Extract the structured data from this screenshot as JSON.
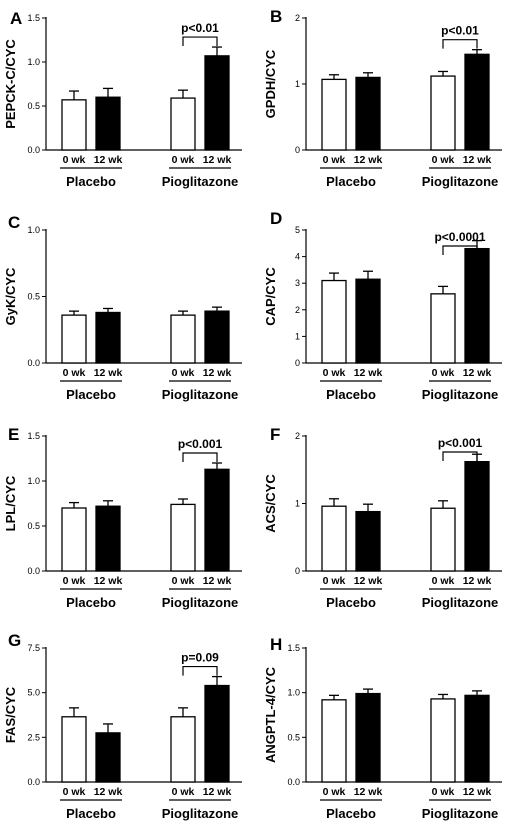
{
  "chart_data": [
    {
      "type": "bar",
      "panel": "A",
      "ylabel": "PEPCK-C/CYC",
      "ylim": [
        0,
        1.5
      ],
      "yticks": [
        "0.0",
        "0.5",
        "1.0",
        "1.5"
      ],
      "ytick_values": [
        0,
        0.5,
        1.0,
        1.5
      ],
      "groups": [
        "Placebo",
        "Pioglitazone"
      ],
      "timepoints": [
        "0 wk",
        "12 wk"
      ],
      "series": [
        {
          "name": "0 wk",
          "fill": "white",
          "values": [
            0.57,
            0.59
          ],
          "errors": [
            0.1,
            0.09
          ]
        },
        {
          "name": "12 wk",
          "fill": "black",
          "values": [
            0.6,
            1.07
          ],
          "errors": [
            0.1,
            0.1
          ]
        }
      ],
      "significance": {
        "group": 1,
        "label": "p<0.01"
      }
    },
    {
      "type": "bar",
      "panel": "B",
      "ylabel": "GPDH/CYC",
      "ylim": [
        0,
        2
      ],
      "yticks": [
        "0",
        "1",
        "2"
      ],
      "ytick_values": [
        0,
        1,
        2
      ],
      "groups": [
        "Placebo",
        "Pioglitazone"
      ],
      "timepoints": [
        "0 wk",
        "12 wk"
      ],
      "series": [
        {
          "name": "0 wk",
          "fill": "white",
          "values": [
            1.07,
            1.12
          ],
          "errors": [
            0.07,
            0.07
          ]
        },
        {
          "name": "12 wk",
          "fill": "black",
          "values": [
            1.1,
            1.45
          ],
          "errors": [
            0.07,
            0.07
          ]
        }
      ],
      "significance": {
        "group": 1,
        "label": "p<0.01"
      }
    },
    {
      "type": "bar",
      "panel": "C",
      "ylabel": "GyK/CYC",
      "ylim": [
        0,
        1.0
      ],
      "yticks": [
        "0.0",
        "0.5",
        "1.0"
      ],
      "ytick_values": [
        0,
        0.5,
        1.0
      ],
      "groups": [
        "Placebo",
        "Pioglitazone"
      ],
      "timepoints": [
        "0 wk",
        "12 wk"
      ],
      "series": [
        {
          "name": "0 wk",
          "fill": "white",
          "values": [
            0.36,
            0.36
          ],
          "errors": [
            0.03,
            0.03
          ]
        },
        {
          "name": "12 wk",
          "fill": "black",
          "values": [
            0.38,
            0.39
          ],
          "errors": [
            0.03,
            0.03
          ]
        }
      ],
      "significance": null
    },
    {
      "type": "bar",
      "panel": "D",
      "ylabel": "CAP/CYC",
      "ylim": [
        0,
        5
      ],
      "yticks": [
        "0",
        "1",
        "2",
        "3",
        "4",
        "5"
      ],
      "ytick_values": [
        0,
        1,
        2,
        3,
        4,
        5
      ],
      "groups": [
        "Placebo",
        "Pioglitazone"
      ],
      "timepoints": [
        "0 wk",
        "12 wk"
      ],
      "series": [
        {
          "name": "0 wk",
          "fill": "white",
          "values": [
            3.1,
            2.6
          ],
          "errors": [
            0.28,
            0.28
          ]
        },
        {
          "name": "12 wk",
          "fill": "black",
          "values": [
            3.15,
            4.3
          ],
          "errors": [
            0.3,
            0.3
          ]
        }
      ],
      "significance": {
        "group": 1,
        "label": "p<0.0001"
      }
    },
    {
      "type": "bar",
      "panel": "E",
      "ylabel": "LPL/CYC",
      "ylim": [
        0,
        1.5
      ],
      "yticks": [
        "0.0",
        "0.5",
        "1.0",
        "1.5"
      ],
      "ytick_values": [
        0,
        0.5,
        1.0,
        1.5
      ],
      "groups": [
        "Placebo",
        "Pioglitazone"
      ],
      "timepoints": [
        "0 wk",
        "12 wk"
      ],
      "series": [
        {
          "name": "0 wk",
          "fill": "white",
          "values": [
            0.7,
            0.74
          ],
          "errors": [
            0.06,
            0.06
          ]
        },
        {
          "name": "12 wk",
          "fill": "black",
          "values": [
            0.72,
            1.13
          ],
          "errors": [
            0.06,
            0.07
          ]
        }
      ],
      "significance": {
        "group": 1,
        "label": "p<0.001"
      }
    },
    {
      "type": "bar",
      "panel": "F",
      "ylabel": "ACS/CYC",
      "ylim": [
        0,
        2
      ],
      "yticks": [
        "0",
        "1",
        "2"
      ],
      "ytick_values": [
        0,
        1,
        2
      ],
      "groups": [
        "Placebo",
        "Pioglitazone"
      ],
      "timepoints": [
        "0 wk",
        "12 wk"
      ],
      "series": [
        {
          "name": "0 wk",
          "fill": "white",
          "values": [
            0.96,
            0.93
          ],
          "errors": [
            0.11,
            0.11
          ]
        },
        {
          "name": "12 wk",
          "fill": "black",
          "values": [
            0.88,
            1.62
          ],
          "errors": [
            0.11,
            0.11
          ]
        }
      ],
      "significance": {
        "group": 1,
        "label": "p<0.001"
      }
    },
    {
      "type": "bar",
      "panel": "G",
      "ylabel": "FAS/CYC",
      "ylim": [
        0,
        7.5
      ],
      "yticks": [
        "0.0",
        "2.5",
        "5.0",
        "7.5"
      ],
      "ytick_values": [
        0,
        2.5,
        5.0,
        7.5
      ],
      "groups": [
        "Placebo",
        "Pioglitazone"
      ],
      "timepoints": [
        "0 wk",
        "12 wk"
      ],
      "series": [
        {
          "name": "0 wk",
          "fill": "white",
          "values": [
            3.65,
            3.65
          ],
          "errors": [
            0.5,
            0.5
          ]
        },
        {
          "name": "12 wk",
          "fill": "black",
          "values": [
            2.75,
            5.4
          ],
          "errors": [
            0.5,
            0.5
          ]
        }
      ],
      "significance": {
        "group": 1,
        "label": "p=0.09"
      }
    },
    {
      "type": "bar",
      "panel": "H",
      "ylabel": "ANGPTL-4/CYC",
      "ylim": [
        0,
        1.5
      ],
      "yticks": [
        "0.0",
        "0.5",
        "1.0",
        "1.5"
      ],
      "ytick_values": [
        0,
        0.5,
        1.0,
        1.5
      ],
      "groups": [
        "Placebo",
        "Pioglitazone"
      ],
      "timepoints": [
        "0 wk",
        "12 wk"
      ],
      "series": [
        {
          "name": "0 wk",
          "fill": "white",
          "values": [
            0.92,
            0.93
          ],
          "errors": [
            0.05,
            0.05
          ]
        },
        {
          "name": "12 wk",
          "fill": "black",
          "values": [
            0.99,
            0.97
          ],
          "errors": [
            0.05,
            0.05
          ]
        }
      ],
      "significance": null
    }
  ]
}
